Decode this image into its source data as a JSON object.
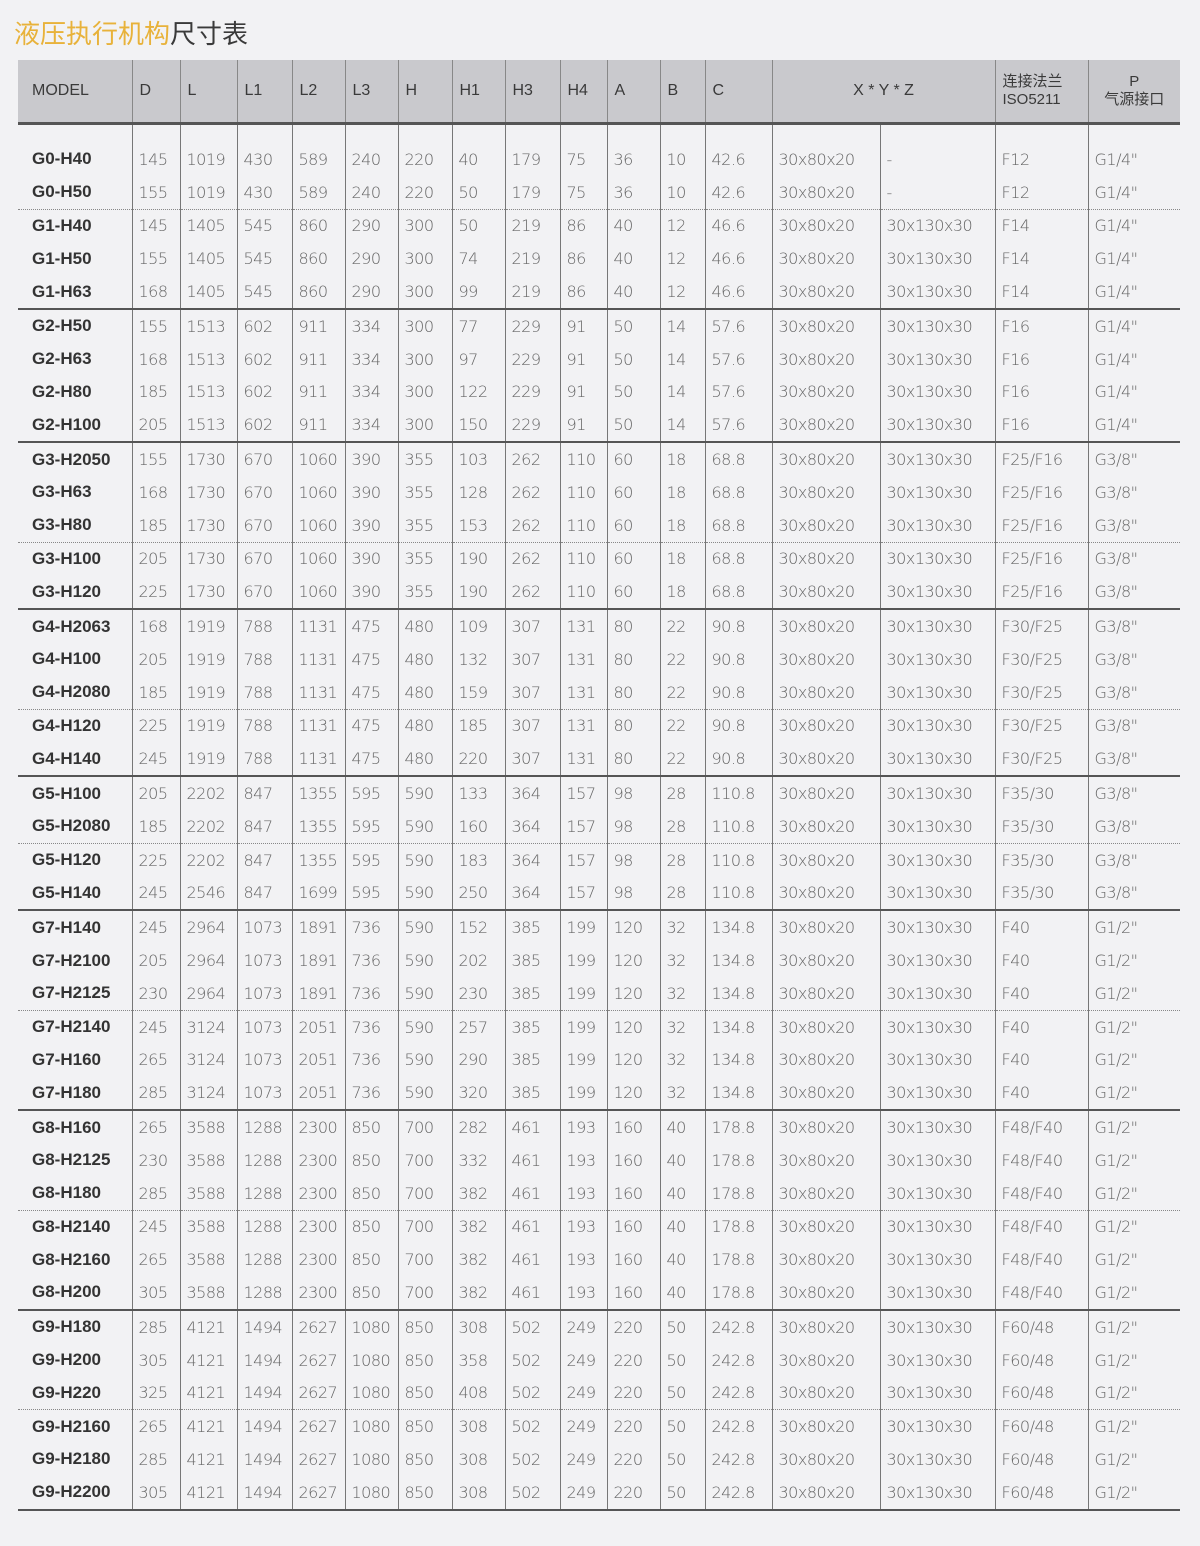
{
  "title": {
    "highlight": "液压执行机构",
    "rest": "尺寸表"
  },
  "headers": [
    "MODEL",
    "D",
    "L",
    "L1",
    "L2",
    "L3",
    "H",
    "H1",
    "H3",
    "H4",
    "A",
    "B",
    "C",
    "X * Y * Z",
    "连接法兰",
    "ISO5211",
    "P",
    "气源接口"
  ],
  "rows": [
    [
      "G0-H40",
      "145",
      "1019",
      "430",
      "589",
      "240",
      "220",
      "40",
      "179",
      "75",
      "36",
      "10",
      "42.6",
      "30x80x20",
      "-",
      "F12",
      "G1/4\""
    ],
    [
      "G0-H50",
      "155",
      "1019",
      "430",
      "589",
      "240",
      "220",
      "50",
      "179",
      "75",
      "36",
      "10",
      "42.6",
      "30x80x20",
      "-",
      "F12",
      "G1/4\""
    ],
    [
      "G1-H40",
      "145",
      "1405",
      "545",
      "860",
      "290",
      "300",
      "50",
      "219",
      "86",
      "40",
      "12",
      "46.6",
      "30x80x20",
      "30x130x30",
      "F14",
      "G1/4\""
    ],
    [
      "G1-H50",
      "155",
      "1405",
      "545",
      "860",
      "290",
      "300",
      "74",
      "219",
      "86",
      "40",
      "12",
      "46.6",
      "30x80x20",
      "30x130x30",
      "F14",
      "G1/4\""
    ],
    [
      "G1-H63",
      "168",
      "1405",
      "545",
      "860",
      "290",
      "300",
      "99",
      "219",
      "86",
      "40",
      "12",
      "46.6",
      "30x80x20",
      "30x130x30",
      "F14",
      "G1/4\""
    ],
    [
      "G2-H50",
      "155",
      "1513",
      "602",
      "911",
      "334",
      "300",
      "77",
      "229",
      "91",
      "50",
      "14",
      "57.6",
      "30x80x20",
      "30x130x30",
      "F16",
      "G1/4\""
    ],
    [
      "G2-H63",
      "168",
      "1513",
      "602",
      "911",
      "334",
      "300",
      "97",
      "229",
      "91",
      "50",
      "14",
      "57.6",
      "30x80x20",
      "30x130x30",
      "F16",
      "G1/4\""
    ],
    [
      "G2-H80",
      "185",
      "1513",
      "602",
      "911",
      "334",
      "300",
      "122",
      "229",
      "91",
      "50",
      "14",
      "57.6",
      "30x80x20",
      "30x130x30",
      "F16",
      "G1/4\""
    ],
    [
      "G2-H100",
      "205",
      "1513",
      "602",
      "911",
      "334",
      "300",
      "150",
      "229",
      "91",
      "50",
      "14",
      "57.6",
      "30x80x20",
      "30x130x30",
      "F16",
      "G1/4\""
    ],
    [
      "G3-H2050",
      "155",
      "1730",
      "670",
      "1060",
      "390",
      "355",
      "103",
      "262",
      "110",
      "60",
      "18",
      "68.8",
      "30x80x20",
      "30x130x30",
      "F25/F16",
      "G3/8\""
    ],
    [
      "G3-H63",
      "168",
      "1730",
      "670",
      "1060",
      "390",
      "355",
      "128",
      "262",
      "110",
      "60",
      "18",
      "68.8",
      "30x80x20",
      "30x130x30",
      "F25/F16",
      "G3/8\""
    ],
    [
      "G3-H80",
      "185",
      "1730",
      "670",
      "1060",
      "390",
      "355",
      "153",
      "262",
      "110",
      "60",
      "18",
      "68.8",
      "30x80x20",
      "30x130x30",
      "F25/F16",
      "G3/8\""
    ],
    [
      "G3-H100",
      "205",
      "1730",
      "670",
      "1060",
      "390",
      "355",
      "190",
      "262",
      "110",
      "60",
      "18",
      "68.8",
      "30x80x20",
      "30x130x30",
      "F25/F16",
      "G3/8\""
    ],
    [
      "G3-H120",
      "225",
      "1730",
      "670",
      "1060",
      "390",
      "355",
      "190",
      "262",
      "110",
      "60",
      "18",
      "68.8",
      "30x80x20",
      "30x130x30",
      "F25/F16",
      "G3/8\""
    ],
    [
      "G4-H2063",
      "168",
      "1919",
      "788",
      "1131",
      "475",
      "480",
      "109",
      "307",
      "131",
      "80",
      "22",
      "90.8",
      "30x80x20",
      "30x130x30",
      "F30/F25",
      "G3/8\""
    ],
    [
      "G4-H100",
      "205",
      "1919",
      "788",
      "1131",
      "475",
      "480",
      "132",
      "307",
      "131",
      "80",
      "22",
      "90.8",
      "30x80x20",
      "30x130x30",
      "F30/F25",
      "G3/8\""
    ],
    [
      "G4-H2080",
      "185",
      "1919",
      "788",
      "1131",
      "475",
      "480",
      "159",
      "307",
      "131",
      "80",
      "22",
      "90.8",
      "30x80x20",
      "30x130x30",
      "F30/F25",
      "G3/8\""
    ],
    [
      "G4-H120",
      "225",
      "1919",
      "788",
      "1131",
      "475",
      "480",
      "185",
      "307",
      "131",
      "80",
      "22",
      "90.8",
      "30x80x20",
      "30x130x30",
      "F30/F25",
      "G3/8\""
    ],
    [
      "G4-H140",
      "245",
      "1919",
      "788",
      "1131",
      "475",
      "480",
      "220",
      "307",
      "131",
      "80",
      "22",
      "90.8",
      "30x80x20",
      "30x130x30",
      "F30/F25",
      "G3/8\""
    ],
    [
      "G5-H100",
      "205",
      "2202",
      "847",
      "1355",
      "595",
      "590",
      "133",
      "364",
      "157",
      "98",
      "28",
      "110.8",
      "30x80x20",
      "30x130x30",
      "F35/30",
      "G3/8\""
    ],
    [
      "G5-H2080",
      "185",
      "2202",
      "847",
      "1355",
      "595",
      "590",
      "160",
      "364",
      "157",
      "98",
      "28",
      "110.8",
      "30x80x20",
      "30x130x30",
      "F35/30",
      "G3/8\""
    ],
    [
      "G5-H120",
      "225",
      "2202",
      "847",
      "1355",
      "595",
      "590",
      "183",
      "364",
      "157",
      "98",
      "28",
      "110.8",
      "30x80x20",
      "30x130x30",
      "F35/30",
      "G3/8\""
    ],
    [
      "G5-H140",
      "245",
      "2546",
      "847",
      "1699",
      "595",
      "590",
      "250",
      "364",
      "157",
      "98",
      "28",
      "110.8",
      "30x80x20",
      "30x130x30",
      "F35/30",
      "G3/8\""
    ],
    [
      "G7-H140",
      "245",
      "2964",
      "1073",
      "1891",
      "736",
      "590",
      "152",
      "385",
      "199",
      "120",
      "32",
      "134.8",
      "30x80x20",
      "30x130x30",
      "F40",
      "G1/2\""
    ],
    [
      "G7-H2100",
      "205",
      "2964",
      "1073",
      "1891",
      "736",
      "590",
      "202",
      "385",
      "199",
      "120",
      "32",
      "134.8",
      "30x80x20",
      "30x130x30",
      "F40",
      "G1/2\""
    ],
    [
      "G7-H2125",
      "230",
      "2964",
      "1073",
      "1891",
      "736",
      "590",
      "230",
      "385",
      "199",
      "120",
      "32",
      "134.8",
      "30x80x20",
      "30x130x30",
      "F40",
      "G1/2\""
    ],
    [
      "G7-H2140",
      "245",
      "3124",
      "1073",
      "2051",
      "736",
      "590",
      "257",
      "385",
      "199",
      "120",
      "32",
      "134.8",
      "30x80x20",
      "30x130x30",
      "F40",
      "G1/2\""
    ],
    [
      "G7-H160",
      "265",
      "3124",
      "1073",
      "2051",
      "736",
      "590",
      "290",
      "385",
      "199",
      "120",
      "32",
      "134.8",
      "30x80x20",
      "30x130x30",
      "F40",
      "G1/2\""
    ],
    [
      "G7-H180",
      "285",
      "3124",
      "1073",
      "2051",
      "736",
      "590",
      "320",
      "385",
      "199",
      "120",
      "32",
      "134.8",
      "30x80x20",
      "30x130x30",
      "F40",
      "G1/2\""
    ],
    [
      "G8-H160",
      "265",
      "3588",
      "1288",
      "2300",
      "850",
      "700",
      "282",
      "461",
      "193",
      "160",
      "40",
      "178.8",
      "30x80x20",
      "30x130x30",
      "F48/F40",
      "G1/2\""
    ],
    [
      "G8-H2125",
      "230",
      "3588",
      "1288",
      "2300",
      "850",
      "700",
      "332",
      "461",
      "193",
      "160",
      "40",
      "178.8",
      "30x80x20",
      "30x130x30",
      "F48/F40",
      "G1/2\""
    ],
    [
      "G8-H180",
      "285",
      "3588",
      "1288",
      "2300",
      "850",
      "700",
      "382",
      "461",
      "193",
      "160",
      "40",
      "178.8",
      "30x80x20",
      "30x130x30",
      "F48/F40",
      "G1/2\""
    ],
    [
      "G8-H2140",
      "245",
      "3588",
      "1288",
      "2300",
      "850",
      "700",
      "382",
      "461",
      "193",
      "160",
      "40",
      "178.8",
      "30x80x20",
      "30x130x30",
      "F48/F40",
      "G1/2\""
    ],
    [
      "G8-H2160",
      "265",
      "3588",
      "1288",
      "2300",
      "850",
      "700",
      "382",
      "461",
      "193",
      "160",
      "40",
      "178.8",
      "30x80x20",
      "30x130x30",
      "F48/F40",
      "G1/2\""
    ],
    [
      "G8-H200",
      "305",
      "3588",
      "1288",
      "2300",
      "850",
      "700",
      "382",
      "461",
      "193",
      "160",
      "40",
      "178.8",
      "30x80x20",
      "30x130x30",
      "F48/F40",
      "G1/2\""
    ],
    [
      "G9-H180",
      "285",
      "4121",
      "1494",
      "2627",
      "1080",
      "850",
      "308",
      "502",
      "249",
      "220",
      "50",
      "242.8",
      "30x80x20",
      "30x130x30",
      "F60/48",
      "G1/2\""
    ],
    [
      "G9-H200",
      "305",
      "4121",
      "1494",
      "2627",
      "1080",
      "850",
      "358",
      "502",
      "249",
      "220",
      "50",
      "242.8",
      "30x80x20",
      "30x130x30",
      "F60/48",
      "G1/2\""
    ],
    [
      "G9-H220",
      "325",
      "4121",
      "1494",
      "2627",
      "1080",
      "850",
      "408",
      "502",
      "249",
      "220",
      "50",
      "242.8",
      "30x80x20",
      "30x130x30",
      "F60/48",
      "G1/2\""
    ],
    [
      "G9-H2160",
      "265",
      "4121",
      "1494",
      "2627",
      "1080",
      "850",
      "308",
      "502",
      "249",
      "220",
      "50",
      "242.8",
      "30x80x20",
      "30x130x30",
      "F60/48",
      "G1/2\""
    ],
    [
      "G9-H2180",
      "285",
      "4121",
      "1494",
      "2627",
      "1080",
      "850",
      "308",
      "502",
      "249",
      "220",
      "50",
      "242.8",
      "30x80x20",
      "30x130x30",
      "F60/48",
      "G1/2\""
    ],
    [
      "G9-H2200",
      "305",
      "4121",
      "1494",
      "2627",
      "1080",
      "850",
      "308",
      "502",
      "249",
      "220",
      "50",
      "242.8",
      "30x80x20",
      "30x130x30",
      "F60/48",
      "G1/2\""
    ]
  ]
}
